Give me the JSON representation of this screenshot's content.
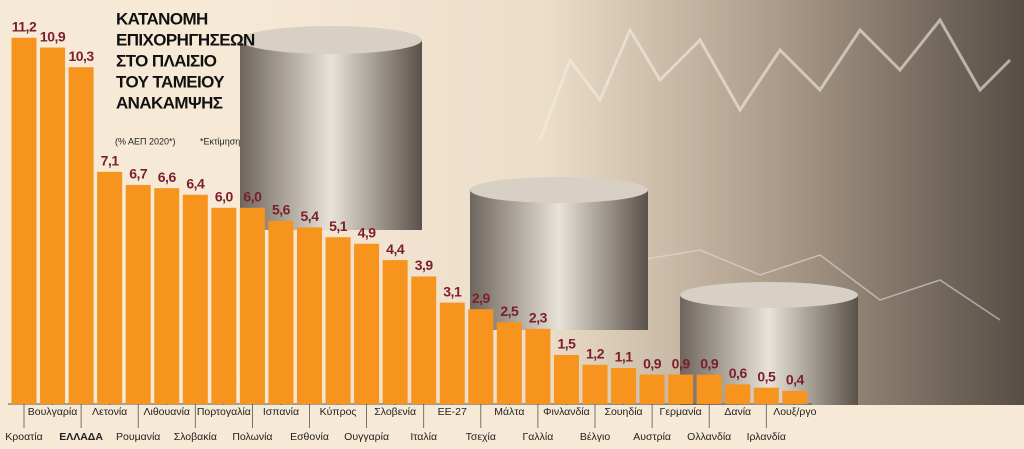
{
  "chart_data": {
    "type": "bar",
    "title": [
      "ΚΑΤΑΝΟΜΗ",
      "ΕΠΙΧΟΡΗΓΗΣΕΩΝ",
      "ΣΤΟ ΠΛΑΙΣΙΟ",
      "ΤΟΥ ΤΑΜΕΙΟΥ",
      "ΑΝΑΚΑΜΨΗΣ"
    ],
    "subtitle": "(% ΑΕΠ 2020*)",
    "note": "*Εκτίμηση",
    "categories": [
      "Κροατία",
      "Βουλγαρία",
      "ΕΛΛΑΔΑ",
      "Λετονία",
      "Ρουμανία",
      "Λιθουανία",
      "Σλοβακία",
      "Πορτογαλία",
      "Πολωνία",
      "Ισπανία",
      "Εσθονία",
      "Κύπρος",
      "Ουγγαρία",
      "Σλοβενία",
      "Ιταλία",
      "ΕΕ-27",
      "Τσεχία",
      "Μάλτα",
      "Γαλλία",
      "Φινλανδία",
      "Βέλγιο",
      "Σουηδία",
      "Αυστρία",
      "Γερμανία",
      "Ολλανδία",
      "Δανία",
      "Ιρλανδία",
      "Λουξ/ργο"
    ],
    "values": [
      11.2,
      10.9,
      10.3,
      7.1,
      6.7,
      6.6,
      6.4,
      6.0,
      6.0,
      5.6,
      5.4,
      5.1,
      4.9,
      4.4,
      3.9,
      3.1,
      2.9,
      2.5,
      2.3,
      1.5,
      1.2,
      1.1,
      0.9,
      0.9,
      0.9,
      0.6,
      0.5,
      0.4
    ],
    "value_labels": [
      "11,2",
      "10,9",
      "10,3",
      "7,1",
      "6,7",
      "6,6",
      "6,4",
      "6,0",
      "6,0",
      "5,6",
      "5,4",
      "5,1",
      "4,9",
      "4,4",
      "3,9",
      "3,1",
      "2,9",
      "2,5",
      "2,3",
      "1,5",
      "1,2",
      "1,1",
      "0,9",
      "0,9",
      "0,9",
      "0,6",
      "0,5",
      "0,4"
    ],
    "color": "#f7941d",
    "label_color": "#7a1f2b",
    "bold_category": 2
  }
}
